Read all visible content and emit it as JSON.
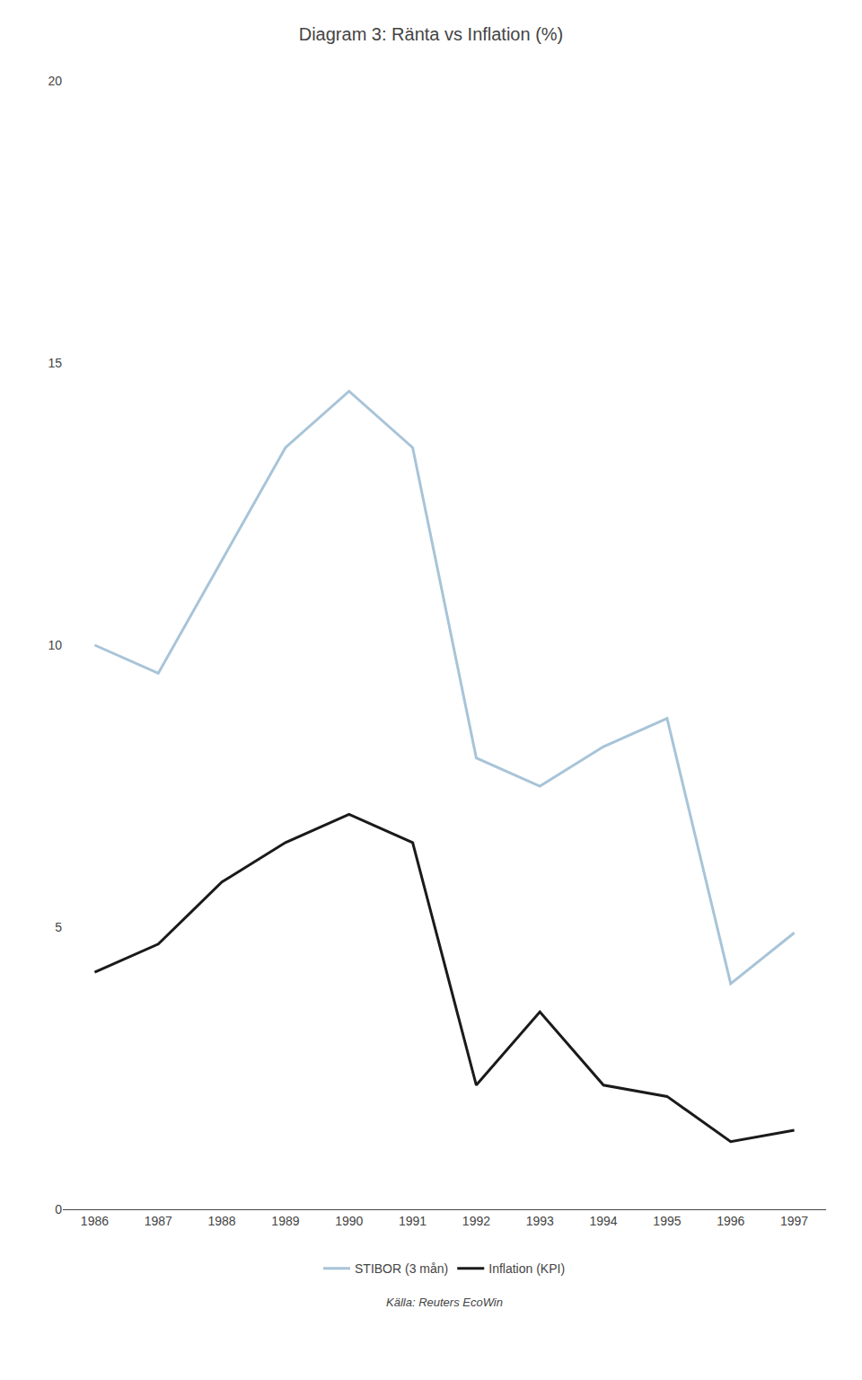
{
  "chart_data": {
    "type": "line",
    "title": "Diagram 3: Ränta vs Inflation (%)",
    "x": [
      1986,
      1987,
      1988,
      1989,
      1990,
      1991,
      1992,
      1993,
      1994,
      1995,
      1996,
      1997
    ],
    "series": [
      {
        "name": "STIBOR (3 mån)",
        "color": "#a8c4d8",
        "values": [
          10.0,
          9.5,
          11.5,
          13.5,
          14.5,
          13.5,
          8.0,
          7.5,
          8.2,
          8.7,
          4.0,
          4.9
        ]
      },
      {
        "name": "Inflation (KPI)",
        "color": "#1a1a1a",
        "values": [
          4.2,
          4.7,
          5.8,
          6.5,
          7.0,
          6.5,
          2.2,
          3.5,
          2.2,
          2.0,
          1.2,
          1.4
        ]
      }
    ],
    "xlim": [
      1985.5,
      1997.5
    ],
    "xticks": [
      1986,
      1987,
      1988,
      1989,
      1990,
      1991,
      1992,
      1993,
      1994,
      1995,
      1996,
      1997
    ],
    "ylim": [
      0,
      20
    ],
    "yticks": [
      0,
      5,
      10,
      15,
      20
    ],
    "grid": false,
    "legend": "bottom",
    "source": "Källa: Reuters EcoWin"
  }
}
